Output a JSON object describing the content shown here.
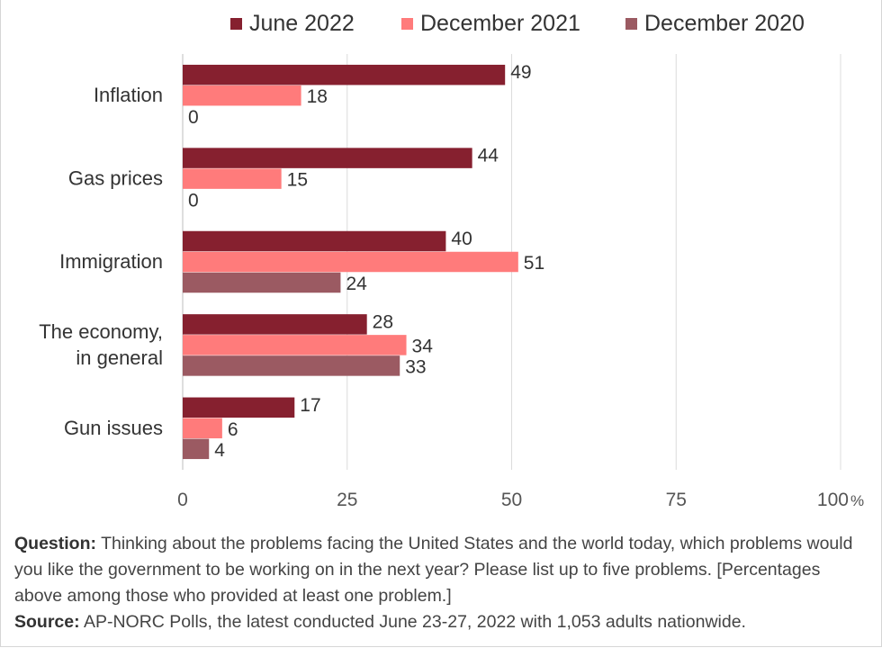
{
  "chart_data": {
    "type": "bar",
    "orientation": "horizontal",
    "categories": [
      "Inflation",
      "Gas prices",
      "Immigration",
      "The economy,\nin general",
      "Gun issues"
    ],
    "series": [
      {
        "name": "June 2022",
        "color": "#86202f",
        "values": [
          49,
          44,
          40,
          28,
          17
        ]
      },
      {
        "name": "December 2021",
        "color": "#ff7b7b",
        "values": [
          18,
          15,
          51,
          34,
          6
        ]
      },
      {
        "name": "December 2020",
        "color": "#9b5a62",
        "values": [
          0,
          0,
          24,
          33,
          4
        ]
      }
    ],
    "xlim": [
      0,
      100
    ],
    "xticks": [
      0,
      25,
      50,
      75,
      100
    ],
    "xtick_labels": [
      "0",
      "25",
      "50",
      "75",
      "100"
    ],
    "xtick_suffix": "%",
    "legend_position": "top",
    "grid": true
  },
  "footnote": {
    "question_label": "Question:",
    "question_text": " Thinking about the problems facing the United States and the world today, which problems would you like the government to be working on in the next year? Please list up to five problems. [Percentages above among those who provided at least one problem.]",
    "source_label": "Source:",
    "source_text": "  AP-NORC Polls, the latest conducted June 23-27, 2022 with 1,053 adults nationwide."
  }
}
